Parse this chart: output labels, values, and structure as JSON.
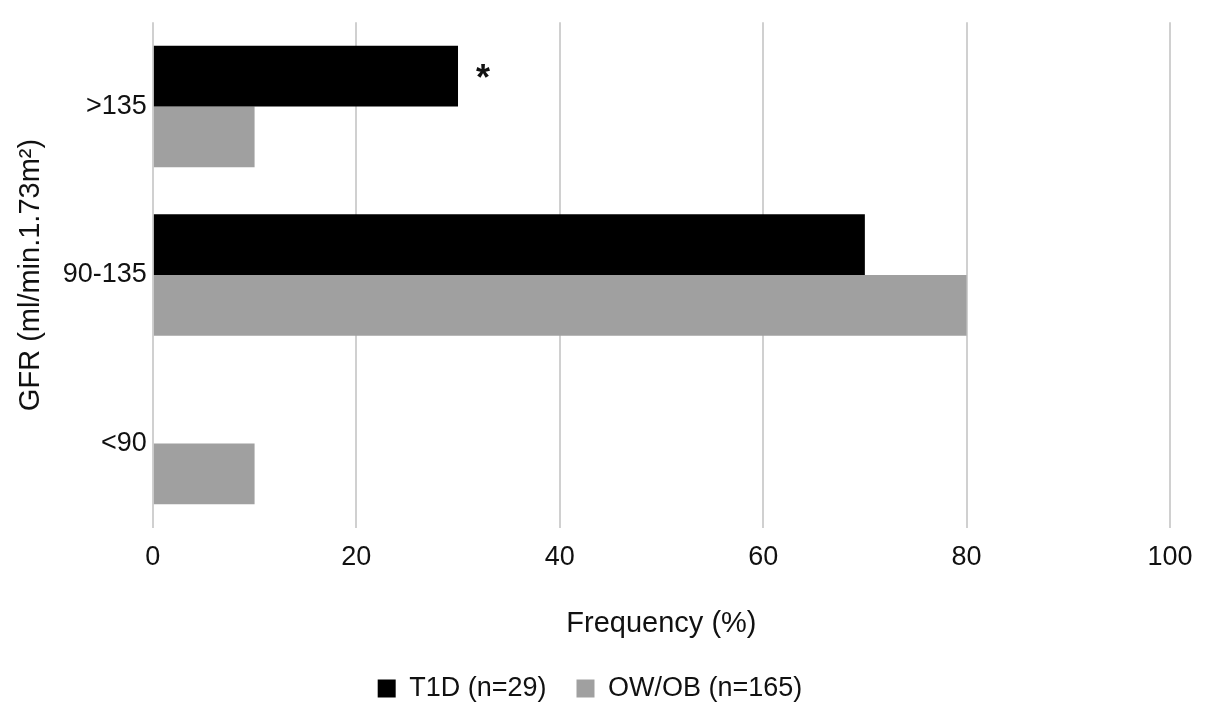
{
  "chart_data": {
    "type": "bar",
    "orientation": "horizontal",
    "categories": [
      ">135",
      "90-135",
      "<90"
    ],
    "series": [
      {
        "name": "T1D (n=29)",
        "color": "#000000",
        "values": [
          30,
          70,
          0
        ]
      },
      {
        "name": "OW/OB (n=165)",
        "color": "#a0a0a0",
        "values": [
          10,
          80,
          10
        ]
      }
    ],
    "xlabel": "Frequency (%)",
    "ylabel": "GFR (ml/min.1.73m²)",
    "xlim": [
      0,
      100
    ],
    "xticks": [
      0,
      20,
      40,
      60,
      80,
      100
    ],
    "grid": "x",
    "legend": "bottom",
    "annotations": [
      {
        "text": "*",
        "x": 30,
        "y": ">135"
      }
    ]
  }
}
